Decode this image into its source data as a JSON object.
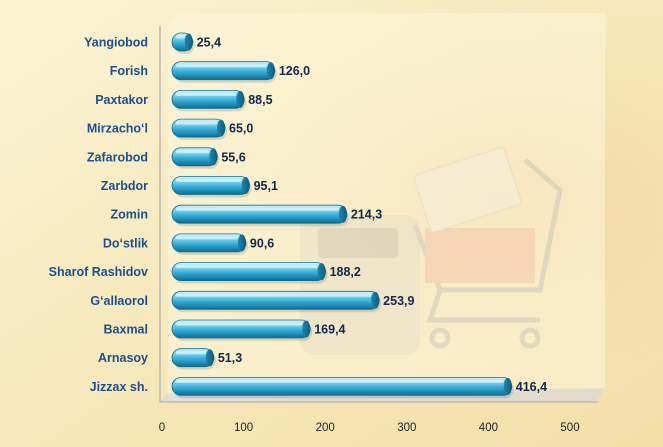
{
  "chart_data": {
    "type": "bar",
    "orientation": "horizontal",
    "categories": [
      "Yangiobod",
      "Forish",
      "Paxtakor",
      "Mirzacho‘l",
      "Zafarobod",
      "Zarbdor",
      "Zomin",
      "Do‘stlik",
      "Sharof Rashidov",
      "G‘allaorol",
      "Baxmal",
      "Arnasoy",
      "Jizzax sh."
    ],
    "values": [
      25.4,
      126.0,
      88.5,
      65.0,
      55.6,
      95.1,
      214.3,
      90.6,
      188.2,
      253.9,
      169.4,
      51.3,
      416.4
    ],
    "value_labels": [
      "25,4",
      "126,0",
      "88,5",
      "65,0",
      "55,6",
      "95,1",
      "214,3",
      "90,6",
      "188,2",
      "253,9",
      "169,4",
      "51,3",
      "416,4"
    ],
    "xlim": [
      0,
      500
    ],
    "xticks": [
      0,
      100,
      200,
      300,
      400,
      500
    ],
    "title": "",
    "xlabel": "",
    "ylabel": "",
    "grid": false,
    "legend": "none",
    "colors": {
      "bar_light": "#c8f0fb",
      "bar_mid": "#3ab6dd",
      "bar_dark": "#0f6f96",
      "category_text": "#1d4f8f",
      "value_text": "#12294a",
      "background": "#f8edc4"
    }
  }
}
